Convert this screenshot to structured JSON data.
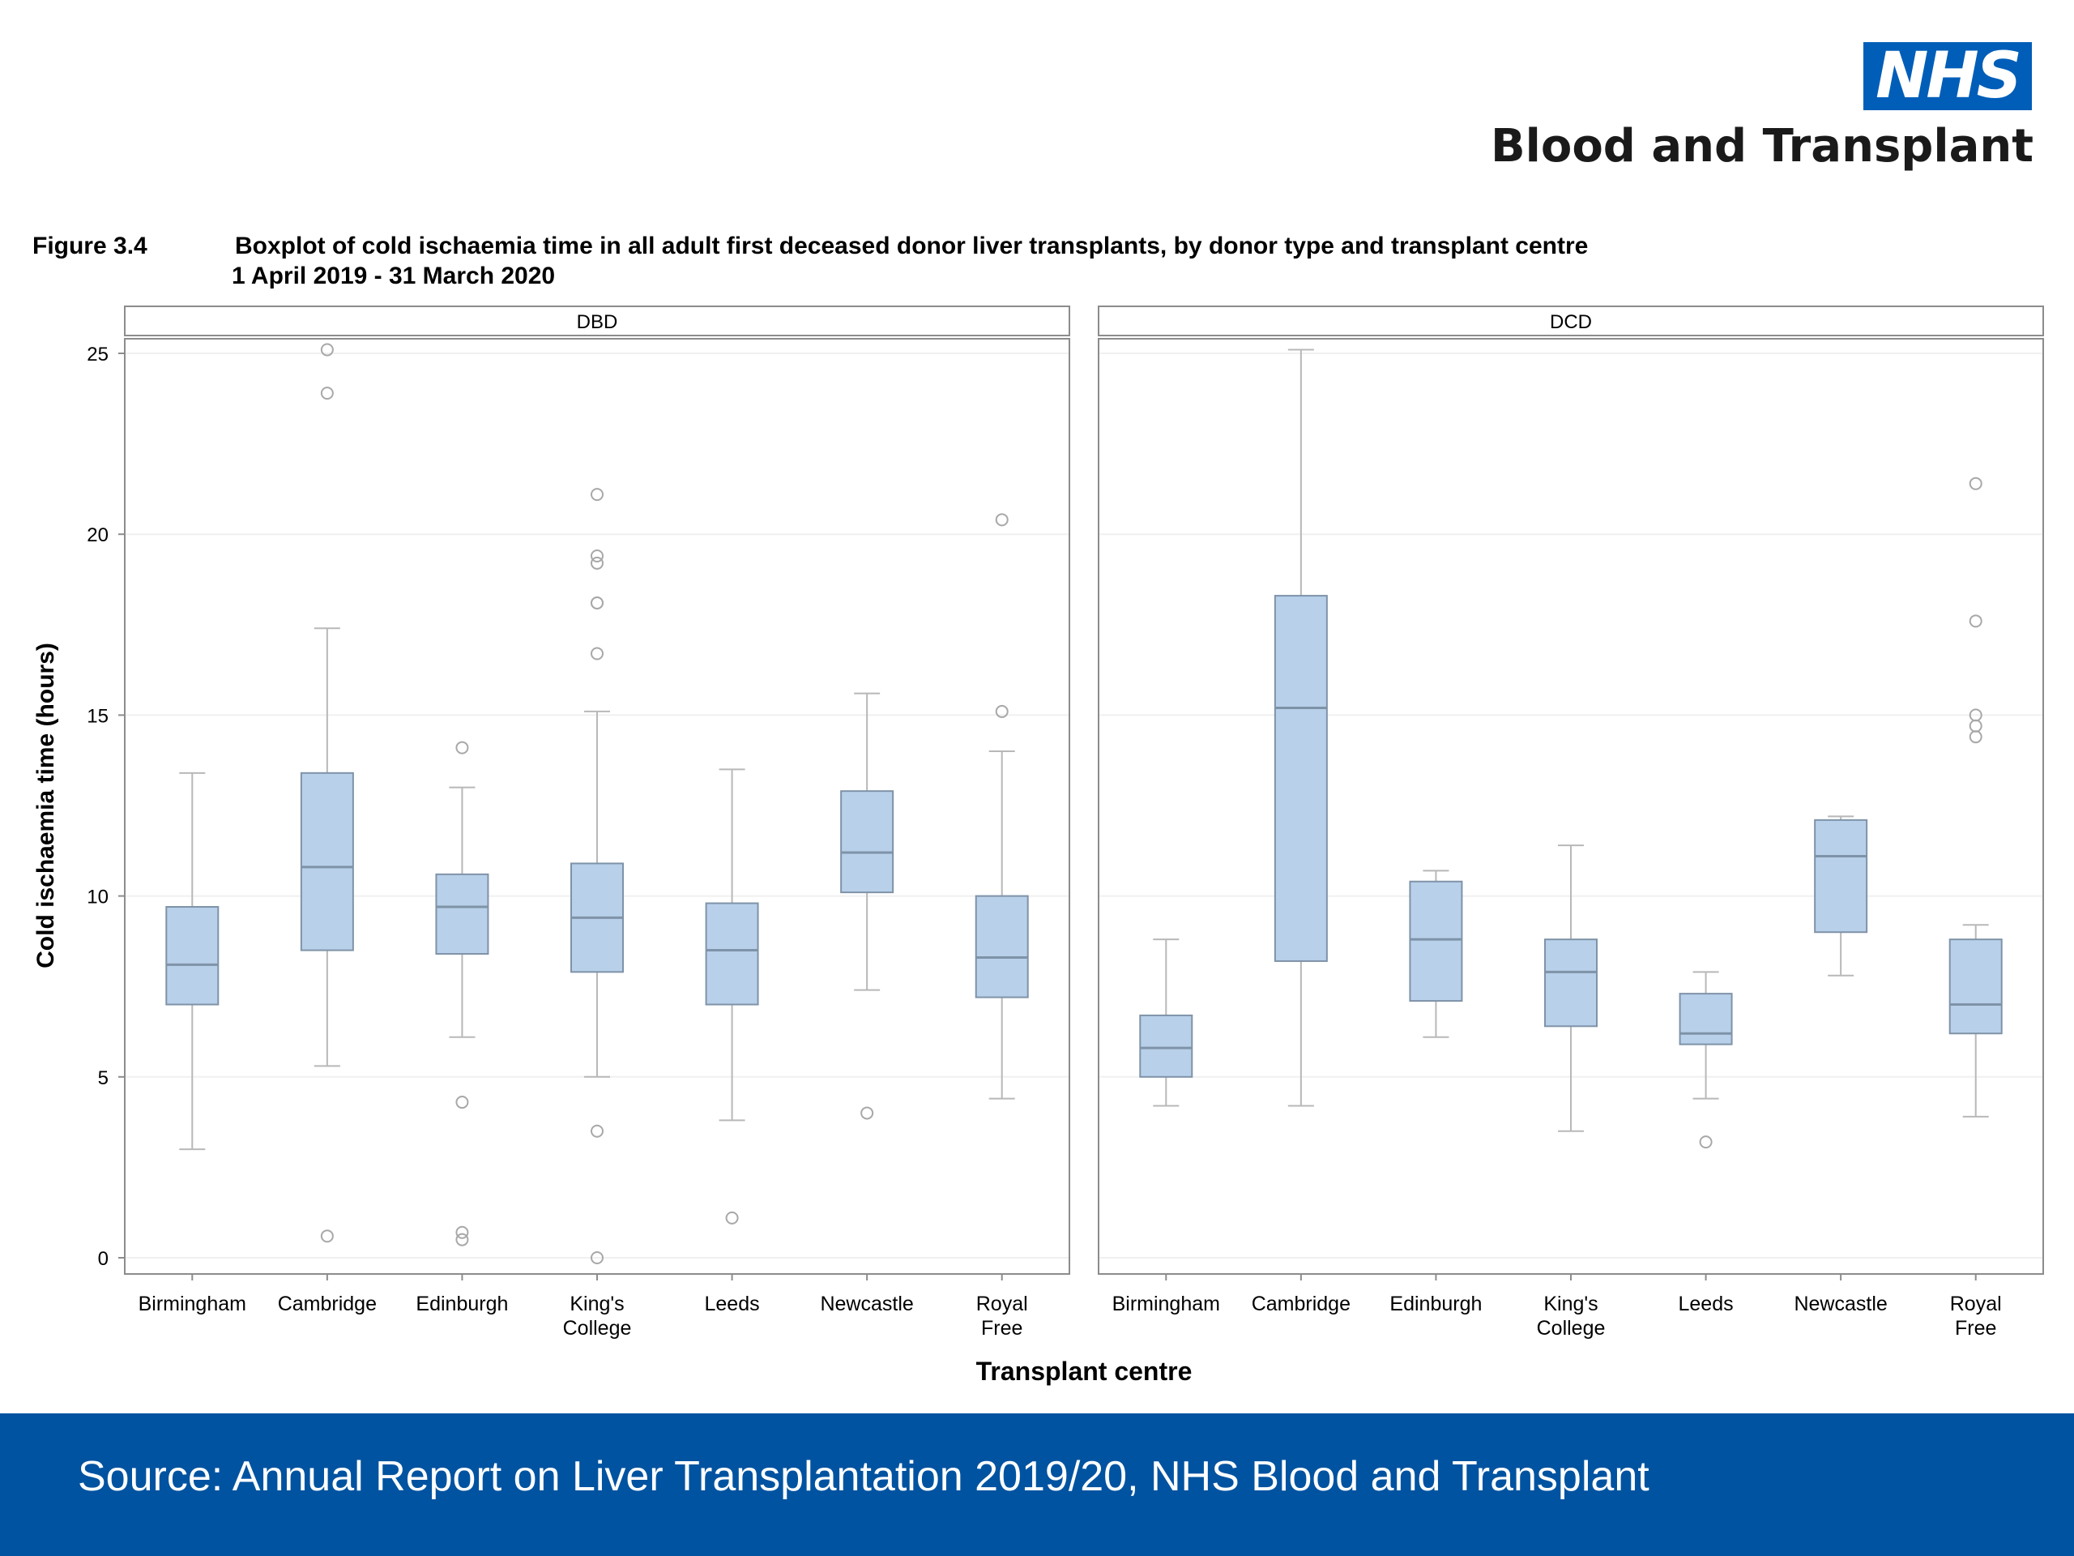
{
  "header": {
    "logo_text": "NHS",
    "logo_subtitle": "Blood and Transplant",
    "figure_label": "Figure 3.4",
    "figure_title": "Boxplot of cold ischaemia time in all adult first deceased donor liver transplants, by donor type and transplant centre",
    "figure_period": "1 April 2019 - 31 March 2020"
  },
  "colors": {
    "box_fill": "#b8d0e9",
    "box_stroke": "#7f93a8",
    "whisker": "#b8b8b8",
    "frame": "#8c8c8c",
    "footer": "#0053a0",
    "nhs_blue": "#005eb8"
  },
  "chart_data": {
    "type": "boxplot",
    "xlabel": "Transplant centre",
    "ylabel": "Cold ischaemia time (hours)",
    "ylim": [
      0,
      25
    ],
    "yticks": [
      0,
      5,
      10,
      15,
      20,
      25
    ],
    "ytick_labels": [
      "0",
      "5",
      "10",
      "15",
      "20",
      "25"
    ],
    "grid": "horizontal, faint",
    "panels": [
      {
        "name": "DBD",
        "categories": [
          "Birmingham",
          "Cambridge",
          "Edinburgh",
          "King's College",
          "Leeds",
          "Newcastle",
          "Royal Free"
        ],
        "boxes": [
          {
            "whisker_low": 3.0,
            "q1": 7.0,
            "median": 8.1,
            "q3": 9.7,
            "whisker_high": 13.4,
            "outliers": []
          },
          {
            "whisker_low": 5.3,
            "q1": 8.5,
            "median": 10.8,
            "q3": 13.4,
            "whisker_high": 17.4,
            "outliers": [
              0.6,
              23.9,
              25.1
            ]
          },
          {
            "whisker_low": 6.1,
            "q1": 8.4,
            "median": 9.7,
            "q3": 10.6,
            "whisker_high": 13.0,
            "outliers": [
              0.5,
              0.7,
              4.3,
              14.1
            ]
          },
          {
            "whisker_low": 5.0,
            "q1": 7.9,
            "median": 9.4,
            "q3": 10.9,
            "whisker_high": 15.1,
            "outliers": [
              0.0,
              3.5,
              16.7,
              18.1,
              18.1,
              19.2,
              19.4,
              21.1
            ]
          },
          {
            "whisker_low": 3.8,
            "q1": 7.0,
            "median": 8.5,
            "q3": 9.8,
            "whisker_high": 13.5,
            "outliers": [
              1.1
            ]
          },
          {
            "whisker_low": 7.4,
            "q1": 10.1,
            "median": 11.2,
            "q3": 12.9,
            "whisker_high": 15.6,
            "outliers": [
              4.0
            ]
          },
          {
            "whisker_low": 4.4,
            "q1": 7.2,
            "median": 8.3,
            "q3": 10.0,
            "whisker_high": 14.0,
            "outliers": [
              15.1,
              20.4
            ]
          }
        ]
      },
      {
        "name": "DCD",
        "categories": [
          "Birmingham",
          "Cambridge",
          "Edinburgh",
          "King's College",
          "Leeds",
          "Newcastle",
          "Royal Free"
        ],
        "boxes": [
          {
            "whisker_low": 4.2,
            "q1": 5.0,
            "median": 5.8,
            "q3": 6.7,
            "whisker_high": 8.8,
            "outliers": []
          },
          {
            "whisker_low": 4.2,
            "q1": 8.2,
            "median": 15.2,
            "q3": 18.3,
            "whisker_high": 25.1,
            "outliers": []
          },
          {
            "whisker_low": 6.1,
            "q1": 7.1,
            "median": 8.8,
            "q3": 10.4,
            "whisker_high": 10.7,
            "outliers": []
          },
          {
            "whisker_low": 3.5,
            "q1": 6.4,
            "median": 7.9,
            "q3": 8.8,
            "whisker_high": 11.4,
            "outliers": []
          },
          {
            "whisker_low": 4.4,
            "q1": 5.9,
            "median": 6.2,
            "q3": 7.3,
            "whisker_high": 7.9,
            "outliers": [
              3.2
            ]
          },
          {
            "whisker_low": 7.8,
            "q1": 9.0,
            "median": 11.1,
            "q3": 12.1,
            "whisker_high": 12.2,
            "outliers": []
          },
          {
            "whisker_low": 3.9,
            "q1": 6.2,
            "median": 7.0,
            "q3": 8.8,
            "whisker_high": 9.2,
            "outliers": [
              14.4,
              14.7,
              15.0,
              17.6,
              21.4
            ]
          }
        ]
      }
    ]
  },
  "footer": {
    "source": "Source: Annual Report on Liver Transplantation 2019/20, NHS Blood and Transplant"
  }
}
